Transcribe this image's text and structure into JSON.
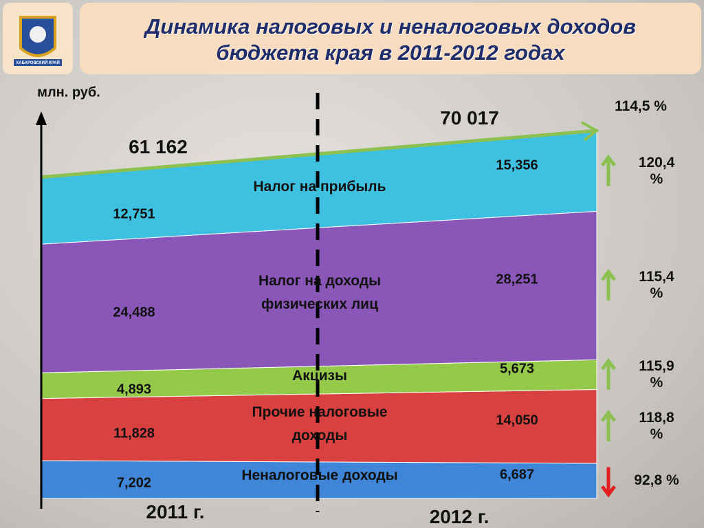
{
  "title": "Динамика налоговых и неналоговых доходов бюджета края в 2011-2012 годах",
  "logo_text": "ХАБАРОВСКИЙ КРАЙ",
  "chart_data": {
    "type": "stacked-area",
    "y_label": "млн. руб.",
    "categories": [
      "2011 г.",
      "2012 г."
    ],
    "series": [
      {
        "name": "Неналоговые доходы",
        "color": "#3f86d8",
        "values": [
          7202,
          6687
        ],
        "value_labels": [
          "7,202",
          "6,687"
        ],
        "growth": {
          "value": 92.8,
          "label": "92,8 %"
        }
      },
      {
        "name": "Прочие налоговые доходы",
        "color": "#d94040",
        "values": [
          11828,
          14050
        ],
        "value_labels": [
          "11,828",
          "14,050"
        ],
        "growth": {
          "value": 118.8,
          "label": "118,8 %"
        }
      },
      {
        "name": "Акцизы",
        "color": "#95c94a",
        "values": [
          4893,
          5673
        ],
        "value_labels": [
          "4,893",
          "5,673"
        ],
        "growth": {
          "value": 115.9,
          "label": "115,9 %"
        }
      },
      {
        "name": "Налог на доходы физических лиц",
        "color": "#8a56b8",
        "values": [
          24488,
          28251
        ],
        "value_labels": [
          "24,488",
          "28,251"
        ],
        "growth": {
          "value": 115.4,
          "label": "115,4 %"
        }
      },
      {
        "name": "Налог на прибыль",
        "color": "#3ec0e0",
        "values": [
          12751,
          15356
        ],
        "value_labels": [
          "12,751",
          "15,356"
        ],
        "growth": {
          "value": 120.4,
          "label": "120,4 %"
        }
      }
    ],
    "totals": {
      "color": "#8cc152",
      "values": [
        61162,
        70017
      ],
      "value_labels": [
        "61 162",
        "70 017"
      ],
      "growth": {
        "value": 114.5,
        "label": "114,5 %"
      }
    },
    "ylim": [
      0,
      70017
    ]
  }
}
